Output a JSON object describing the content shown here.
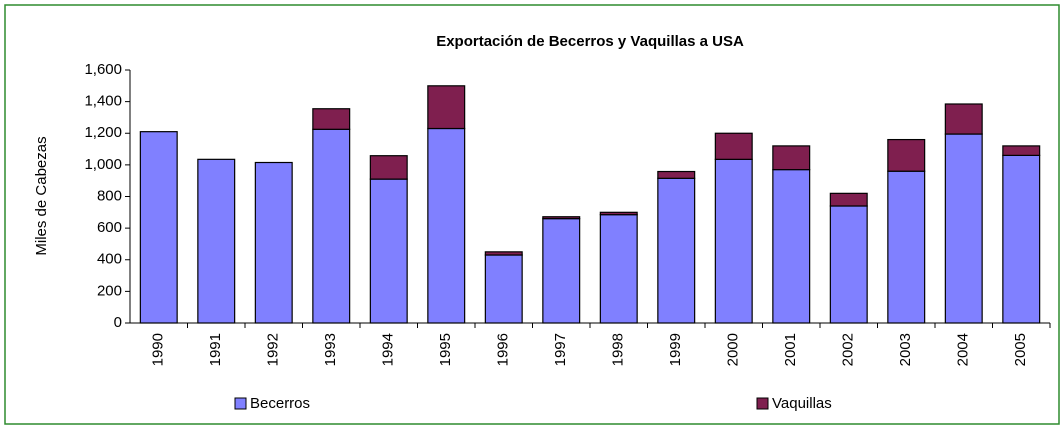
{
  "chart_data": {
    "type": "stacked_bar",
    "title": "Exportación de Becerros y Vaquillas a USA",
    "y_label": "Miles de Cabezas",
    "categories": [
      "1990",
      "1991",
      "1992",
      "1993",
      "1994",
      "1995",
      "1996",
      "1997",
      "1998",
      "1999",
      "2000",
      "2001",
      "2002",
      "2003",
      "2004",
      "2005"
    ],
    "series": [
      {
        "name": "Becerros",
        "color": "#8080ff",
        "values": [
          1210,
          1035,
          1015,
          1225,
          910,
          1230,
          430,
          660,
          685,
          915,
          1035,
          970,
          740,
          960,
          1195,
          1060
        ]
      },
      {
        "name": "Vaquillas",
        "color": "#7f1f4f",
        "values": [
          0,
          0,
          0,
          130,
          148,
          270,
          20,
          12,
          15,
          43,
          165,
          150,
          80,
          200,
          190,
          60
        ]
      }
    ],
    "ylim": [
      0,
      1600
    ],
    "yticks": [
      0,
      200,
      400,
      600,
      800,
      {
        "value": 1000,
        "label": "1,000"
      },
      {
        "value": 1200,
        "label": "1,200"
      },
      {
        "value": 1400,
        "label": "1,400"
      },
      {
        "value": 1600,
        "label": "1,600"
      }
    ],
    "grid": false,
    "legend": "bottom"
  }
}
